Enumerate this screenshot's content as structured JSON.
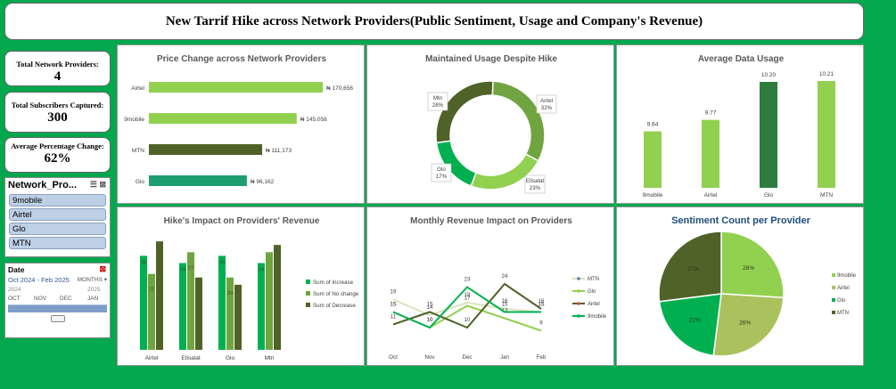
{
  "title": "New Tarrif Hike across Network Providers(Public Sentiment, Usage and Company's Revenue)",
  "kpis": [
    {
      "label": "Total Network Providers:",
      "value": "4"
    },
    {
      "label": "Total Subscribers Captured:",
      "value": "300"
    },
    {
      "label": "Average Percentage Change:",
      "value": "62%"
    }
  ],
  "slicer": {
    "header": "Network_Pro...",
    "items": [
      "9mobile",
      "Airtel",
      "Glo",
      "MTN"
    ]
  },
  "timeline": {
    "header": "Date",
    "range": "Oct 2024 - Feb 2025",
    "unit": "MONTHS",
    "years": [
      "2024",
      "2025"
    ],
    "months": [
      "OCT",
      "NOV",
      "DEC",
      "JAN"
    ]
  },
  "colors": {
    "background": "#03a84e",
    "light_green": "#92d050",
    "olive": "#70a440",
    "dark_olive": "#4f6228",
    "teal": "#1e9e70",
    "green": "#00b050",
    "pale": "#d8e4bc"
  },
  "chart_data": [
    {
      "type": "bar",
      "orientation": "horizontal",
      "title": "Price Change across Network Providers",
      "categories": [
        "Airtel",
        "9mobile",
        "MTN",
        "Glo"
      ],
      "values": [
        170656,
        145058,
        111173,
        96162
      ],
      "labels": [
        "₦ 170,656",
        "₦ 145,058",
        "₦ 111,173",
        "₦ 96,162"
      ],
      "colors": [
        "#92d050",
        "#92d050",
        "#4f6228",
        "#1e9e70"
      ]
    },
    {
      "type": "pie",
      "donut": true,
      "title": "Maintained Usage Despite Hike",
      "categories": [
        "Airtel",
        "Etisalat",
        "Glo",
        "Mtn"
      ],
      "values": [
        32,
        23,
        17,
        28
      ],
      "labels": [
        "32%",
        "23%",
        "17%",
        "28%"
      ],
      "colors": [
        "#70a440",
        "#92d050",
        "#00b050",
        "#4f6228"
      ]
    },
    {
      "type": "bar",
      "title": "Average Data Usage",
      "categories": [
        "9mobile",
        "Airtel",
        "Glo",
        "MTN"
      ],
      "values": [
        9.64,
        9.77,
        10.2,
        10.21
      ],
      "labels": [
        "9.64",
        "9.77",
        "10.20",
        "10.21"
      ],
      "colors": [
        "#92d050",
        "#92d050",
        "#2e7d3e",
        "#92d050"
      ]
    },
    {
      "type": "bar",
      "title": "Hike's Impact on Providers' Revenue",
      "categories": [
        "Airtel",
        "Etisalat",
        "Glo",
        "Mtn"
      ],
      "series": [
        {
          "name": "Sum of Increase",
          "values": [
            26,
            24,
            26,
            24
          ],
          "color": "#00b050"
        },
        {
          "name": "Sum of No change",
          "values": [
            21,
            27,
            20,
            27
          ],
          "color": "#70a440"
        },
        {
          "name": "Sum of Decrease",
          "values": [
            30,
            20,
            18,
            29
          ],
          "color": "#4f6228"
        }
      ],
      "data_labels": [
        [
          "26",
          "21",
          ""
        ],
        [
          "24",
          "27",
          ""
        ],
        [
          "26",
          "20",
          ""
        ],
        [
          "24",
          "",
          ""
        ]
      ]
    },
    {
      "type": "line",
      "title": "Monthly Revenue Impact on Providers",
      "categories": [
        "Oct",
        "Nov",
        "Dec",
        "Jan",
        "Feb"
      ],
      "series": [
        {
          "name": "MTN",
          "values": [
            19,
            14,
            18,
            16,
            15
          ],
          "color": "#d8e4bc"
        },
        {
          "name": "Glo",
          "values": [
            15,
            10,
            17,
            13,
            9
          ],
          "color": "#92d050"
        },
        {
          "name": "Airtel",
          "values": [
            11,
            15,
            10,
            24,
            16
          ],
          "color": "#4f6228"
        },
        {
          "name": "9mobile",
          "values": [
            15,
            10,
            23,
            15,
            15
          ],
          "color": "#00b050"
        }
      ]
    },
    {
      "type": "pie",
      "title": "Sentiment Count per Provider",
      "categories": [
        "9mobile",
        "Airtel",
        "Glo",
        "MTN"
      ],
      "values": [
        26,
        26,
        21,
        27
      ],
      "labels": [
        "26%",
        "26%",
        "21%",
        "27%"
      ],
      "colors": [
        "#92d050",
        "#a9c25d",
        "#00b050",
        "#4f6228"
      ]
    }
  ]
}
